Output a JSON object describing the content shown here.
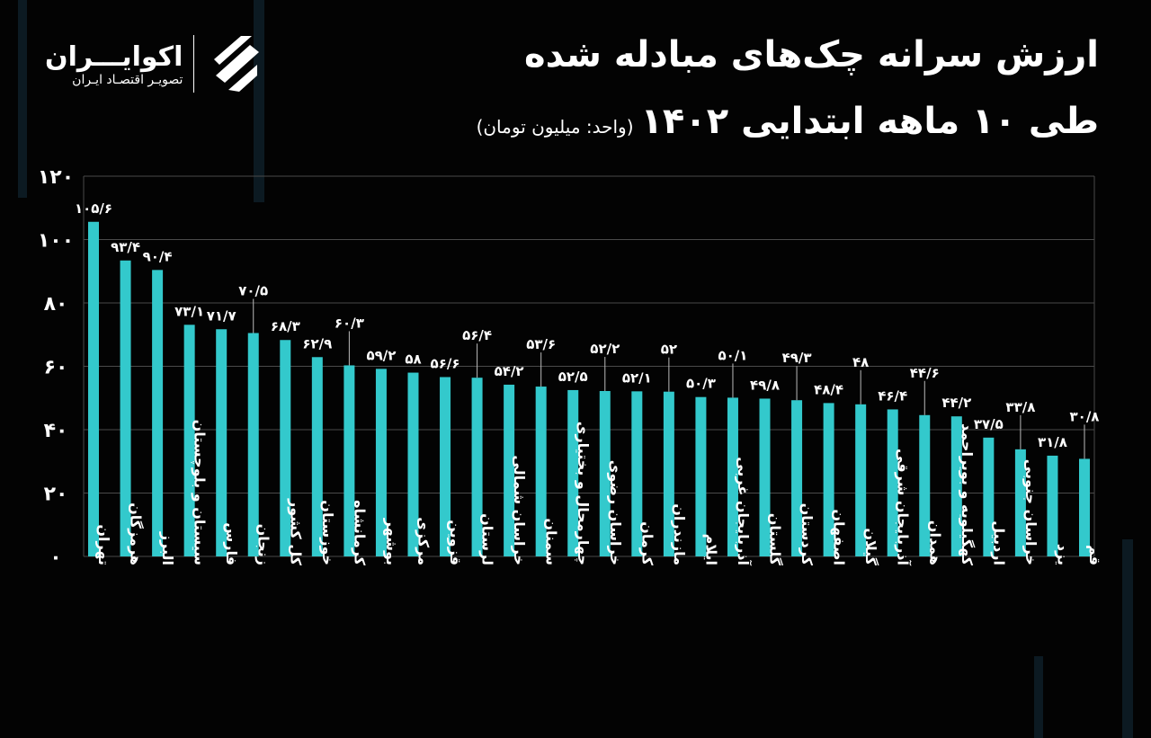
{
  "header": {
    "title_line1": "ارزش سرانه چک‌های مبادله شده",
    "title_line2": "طی ۱۰ ماهه ابتدایی ۱۴۰۲",
    "unit": "(واحد: میلیون تومان)"
  },
  "logo": {
    "name": "اکوایـــران",
    "subtitle": "تصویـر اقتصـاد ایـران"
  },
  "colors": {
    "bar": "#33c9cc",
    "background": "#030303",
    "grid": "#4a4a4a",
    "text": "#ffffff"
  },
  "chart_data": {
    "type": "bar",
    "title": "ارزش سرانه چک‌های مبادله شده طی ۱۰ ماهه ابتدایی ۱۴۰۲",
    "ylabel": "(واحد: میلیون تومان)",
    "ylim": [
      0,
      120
    ],
    "grid": true,
    "yticks": [
      0,
      20,
      40,
      60,
      80,
      100,
      120
    ],
    "ytick_labels": [
      "۰",
      "۲۰",
      "۴۰",
      "۶۰",
      "۸۰",
      "۱۰۰",
      "۱۲۰"
    ],
    "categories": [
      "تهران",
      "هرمزگان",
      "البرز",
      "سیستان و بلوچستان",
      "فارس",
      "زنجان",
      "کل کشور",
      "خوزستان",
      "کرمانشاه",
      "بوشهر",
      "مرکزی",
      "قزوین",
      "لرستان",
      "خراسان شمالی",
      "سمنان",
      "چهارمحال و بختیاری",
      "خراسان رضوی",
      "کرمان",
      "مازندران",
      "ایلام",
      "آذربایجان غربی",
      "گلستان",
      "کردستان",
      "اصفهان",
      "گیلان",
      "آذربایجان شرقی",
      "همدان",
      "کهگیلویه و بویراحمد",
      "اردبیل",
      "خراسان جنوبی",
      "یزد",
      "قم"
    ],
    "values": [
      105.6,
      93.4,
      90.4,
      73.1,
      71.7,
      70.5,
      68.3,
      62.9,
      60.3,
      59.2,
      58,
      56.6,
      56.4,
      54.2,
      53.6,
      52.5,
      52.2,
      52.1,
      52,
      50.3,
      50.1,
      49.8,
      49.3,
      48.4,
      48,
      46.4,
      44.6,
      44.2,
      37.5,
      33.8,
      31.8,
      30.8
    ],
    "data_labels": [
      "۱۰۵/۶",
      "۹۳/۴",
      "۹۰/۴",
      "۷۳/۱",
      "۷۱/۷",
      "۷۰/۵",
      "۶۸/۳",
      "۶۲/۹",
      "۶۰/۳",
      "۵۹/۲",
      "۵۸",
      "۵۶/۶",
      "۵۶/۴",
      "۵۴/۲",
      "۵۳/۶",
      "۵۲/۵",
      "۵۲/۲",
      "۵۲/۱",
      "۵۲",
      "۵۰/۳",
      "۵۰/۱",
      "۴۹/۸",
      "۴۹/۳",
      "۴۸/۴",
      "۴۸",
      "۴۶/۴",
      "۴۴/۶",
      "۴۴/۲",
      "۳۷/۵",
      "۳۳/۸",
      "۳۱/۸",
      "۳۰/۸"
    ]
  }
}
